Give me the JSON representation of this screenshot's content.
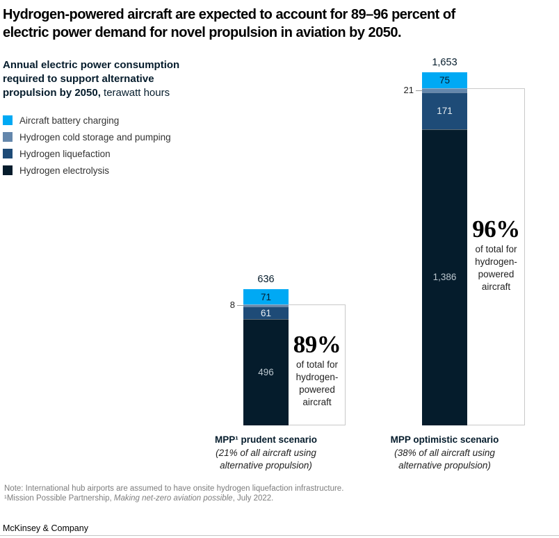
{
  "title": {
    "line1": "Hydrogen-powered aircraft are expected to account for 89–96 percent of",
    "line2": "electric power demand for novel propulsion in aviation by 2050."
  },
  "subtitle": {
    "bold": "Annual electric power consumption required to support alternative propulsion by 2050,",
    "unit": "terawatt hours"
  },
  "legend": [
    {
      "label": "Aircraft battery charging",
      "color": "#00A9F4"
    },
    {
      "label": "Hydrogen cold storage and pumping",
      "color": "#6487AC"
    },
    {
      "label": "Hydrogen liquefaction",
      "color": "#1E4B77"
    },
    {
      "label": "Hydrogen electrolysis",
      "color": "#051C2C"
    }
  ],
  "chart_data": {
    "type": "bar",
    "stacked": true,
    "title": "Annual electric power consumption required to support alternative propulsion by 2050, terawatt hours",
    "unit": "terawatt hours",
    "grid": false,
    "legend_position": "top-left",
    "categories": [
      "MPP¹ prudent scenario (21% of all aircraft using alternative propulsion)",
      "MPP optimistic scenario (38% of all aircraft using alternative propulsion)"
    ],
    "series": [
      {
        "name": "Aircraft battery charging",
        "color": "#00A9F4",
        "values": [
          71,
          75
        ]
      },
      {
        "name": "Hydrogen cold storage and pumping",
        "color": "#6487AC",
        "values": [
          8,
          21
        ]
      },
      {
        "name": "Hydrogen liquefaction",
        "color": "#1E4B77",
        "values": [
          61,
          171
        ]
      },
      {
        "name": "Hydrogen electrolysis",
        "color": "#051C2C",
        "values": [
          496,
          1386
        ]
      }
    ],
    "totals": [
      636,
      1653
    ],
    "annotations": [
      "89% of total for hydrogen-powered aircraft",
      "96% of total for hydrogen-powered aircraft"
    ]
  },
  "bars": [
    {
      "total": "636",
      "segments": [
        {
          "value": 71,
          "label": "71",
          "color": "#00A9F4",
          "label_color": "#051C2C",
          "inside": true
        },
        {
          "value": 8,
          "label": "8",
          "color": "#6487AC",
          "label_color": "#222222",
          "inside": false
        },
        {
          "value": 61,
          "label": "61",
          "color": "#1E4B77",
          "label_color": "#E8EEF2",
          "inside": true
        },
        {
          "value": 496,
          "label": "496",
          "color": "#051C2C",
          "label_color": "#BCC7CF",
          "inside": true
        }
      ],
      "callout": {
        "pct": "89%",
        "lines": [
          "of total for",
          "hydrogen-",
          "powered",
          "aircraft"
        ]
      },
      "xlabel": {
        "title": "MPP¹ prudent scenario",
        "sub": [
          "(21% of all aircraft using",
          "alternative propulsion)"
        ]
      }
    },
    {
      "total": "1,653",
      "segments": [
        {
          "value": 75,
          "label": "75",
          "color": "#00A9F4",
          "label_color": "#051C2C",
          "inside": true
        },
        {
          "value": 21,
          "label": "21",
          "color": "#6487AC",
          "label_color": "#222222",
          "inside": false
        },
        {
          "value": 171,
          "label": "171",
          "color": "#1E4B77",
          "label_color": "#E8EEF2",
          "inside": true
        },
        {
          "value": 1386,
          "label": "1,386",
          "color": "#051C2C",
          "label_color": "#BCC7CF",
          "inside": true
        }
      ],
      "callout": {
        "pct": "96%",
        "lines": [
          "of total for",
          "hydrogen-",
          "powered",
          "aircraft"
        ]
      },
      "xlabel": {
        "title": "MPP optimistic scenario",
        "sub": [
          "(38% of all aircraft using",
          "alternative propulsion)"
        ]
      }
    }
  ],
  "footer": {
    "note": "Note: International hub airports are assumed to have onsite hydrogen liquefaction infrastructure.",
    "source_pre": "¹Mission Possible Partnership, ",
    "source_italic": "Making net-zero aviation possible",
    "source_post": ", July 2022.",
    "brand": "McKinsey & Company"
  }
}
